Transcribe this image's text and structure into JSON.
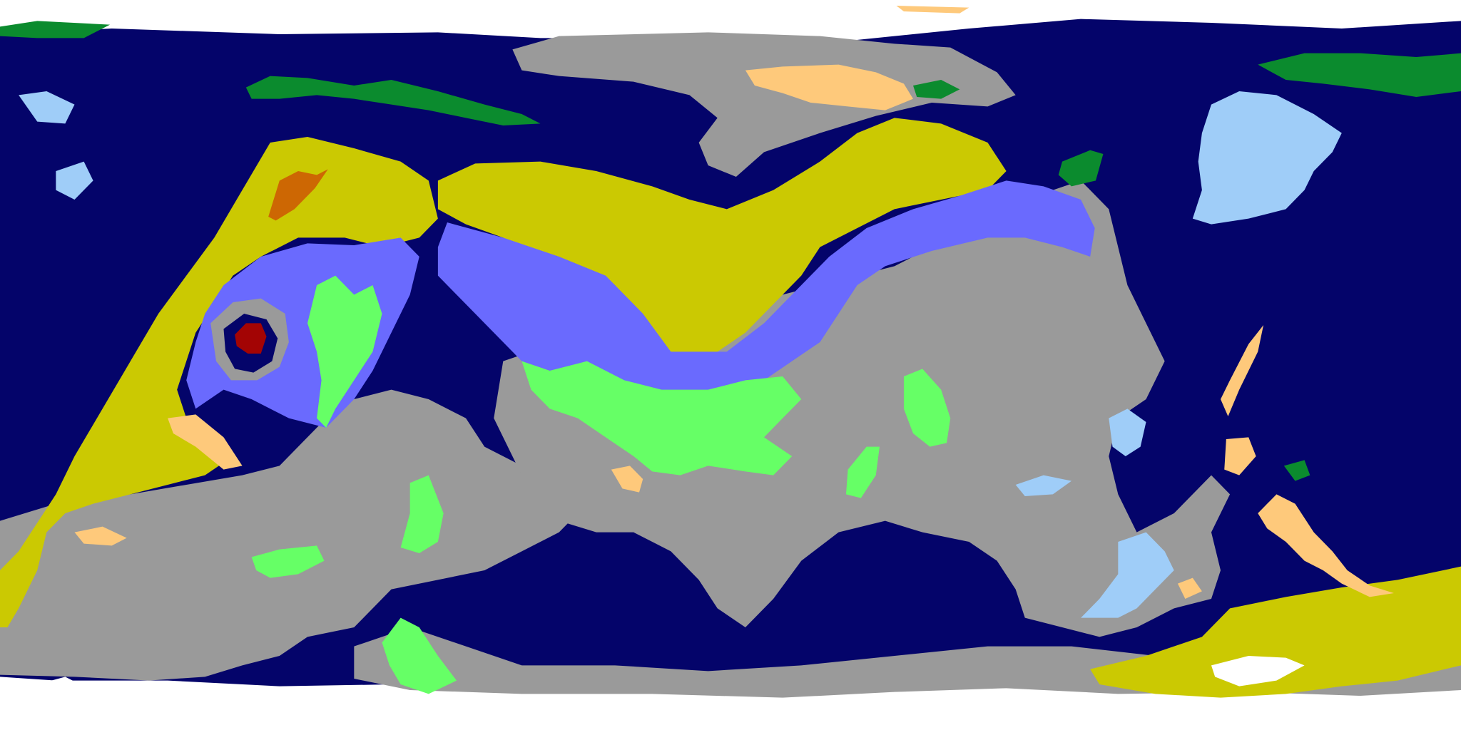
{
  "map": {
    "type": "equirectangular-climate-map",
    "labels_visible": false,
    "legend_visible": false,
    "colors": {
      "ocean": "#04046a",
      "ice": "#ffffff",
      "tundra_gray": "#9a9a9a",
      "olive_yellow": "#cbc902",
      "periwinkle": "#6a6afe",
      "light_green": "#66ff66",
      "dark_green": "#0b8b2e",
      "sand": "#fec97b",
      "light_blue": "#9fcdf8",
      "burnt_orange": "#cd6703",
      "dark_red": "#a30404"
    }
  }
}
